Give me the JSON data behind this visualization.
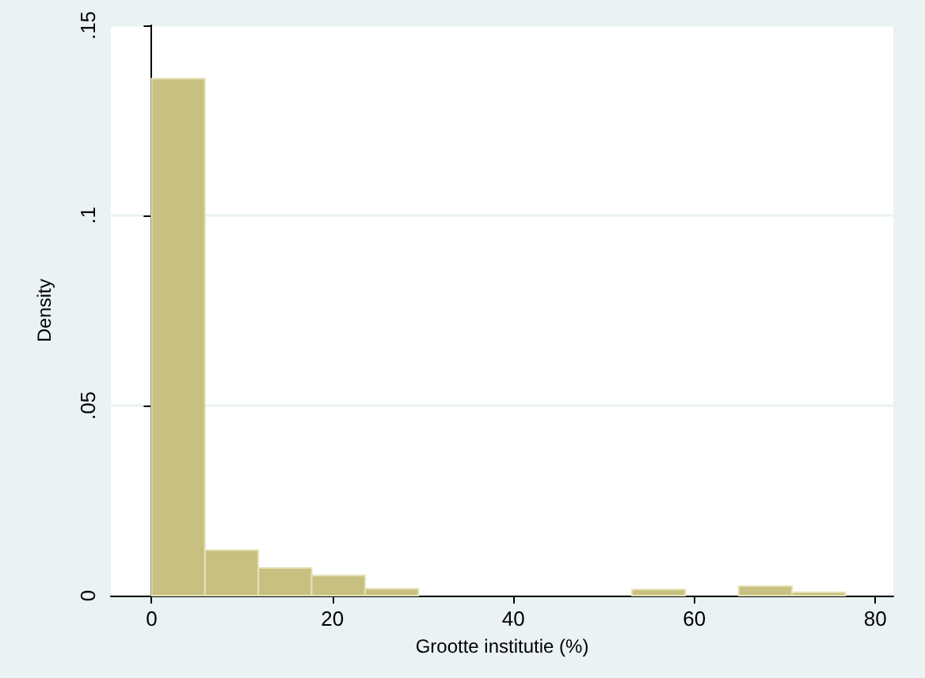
{
  "chart_data": {
    "type": "histogram",
    "xlabel": "Grootte institutie (%)",
    "ylabel": "Density",
    "bins": [
      0,
      5.9,
      11.8,
      17.7,
      23.6,
      29.5,
      35.4,
      41.3,
      47.2,
      53.1,
      59,
      64.9,
      70.8,
      76.7
    ],
    "values": [
      0.136,
      0.012,
      0.0073,
      0.0053,
      0.0018,
      0,
      0,
      0,
      0,
      0.0016,
      0,
      0.0025,
      0.0009
    ],
    "color": "#c8c080",
    "xlim": [
      -4.5,
      82
    ],
    "xticks": [
      0,
      20,
      40,
      60,
      80
    ],
    "ylim": [
      0,
      0.15
    ],
    "yticks": [
      {
        "value": 0,
        "label": "0"
      },
      {
        "value": 0.05,
        "label": ".05"
      },
      {
        "value": 0.1,
        "label": ".1"
      },
      {
        "value": 0.15,
        "label": ".15"
      }
    ],
    "grid": "y"
  }
}
